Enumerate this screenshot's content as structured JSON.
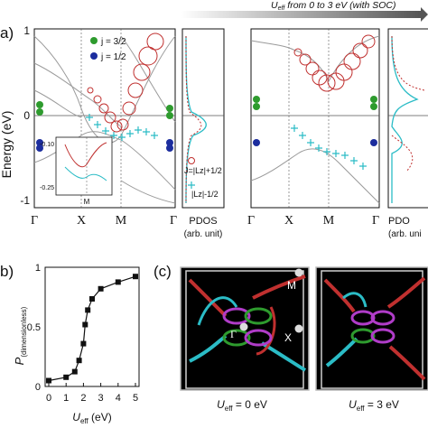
{
  "header": {
    "arrow_label": "U",
    "arrow_sub": "eff",
    "arrow_rest": " from 0 to 3 eV (with SOC)"
  },
  "panel_a": {
    "tag": "a)",
    "ylabel": "Energy (eV)",
    "yticks": [
      "1",
      "0",
      "-1"
    ],
    "kpath": [
      "Γ",
      "X",
      "M",
      "Γ"
    ],
    "legend": [
      {
        "label": "j = 3/2",
        "color": "#2e9b2e"
      },
      {
        "label": "j = 1/2",
        "color": "#1c2d9e"
      }
    ],
    "inset": {
      "yticks": [
        "-0.10",
        "-0.25"
      ],
      "xlabel": "M"
    },
    "orbital_legend": [
      {
        "label": "J=|Lz|+1/2",
        "color": "#c0302f"
      },
      {
        "label": "|Lz|-1/2",
        "color": "#2bbcc6"
      }
    ],
    "pdos_label": "PDOS",
    "pdos_unit": "(arb. unit)",
    "pdos_label_right": "PDO",
    "pdos_unit_right": "(arb. uni"
  },
  "panel_b": {
    "tag": "b)",
    "ylabel": "P",
    "ylabel_sub": "(dimensionless)",
    "xlabel": "U",
    "xlabel_sub": "eff",
    "xlabel_unit": " (eV)",
    "yticks": [
      "1",
      "0.5",
      "0"
    ],
    "xticks": [
      "0",
      "1",
      "2",
      "3",
      "4",
      "5"
    ],
    "chart_data": {
      "type": "line",
      "x": [
        0,
        1,
        1.5,
        1.75,
        2,
        2.1,
        2.25,
        2.5,
        3,
        4,
        5
      ],
      "y": [
        0.02,
        0.05,
        0.1,
        0.2,
        0.35,
        0.52,
        0.65,
        0.75,
        0.84,
        0.9,
        0.95
      ],
      "xlim": [
        0,
        5
      ],
      "ylim": [
        0,
        1
      ],
      "marker": "square"
    }
  },
  "panel_c": {
    "tag": "(c)",
    "labels_left": [
      "M",
      "Γ",
      "X"
    ],
    "caption_left": "U",
    "caption_left_sub": "eff",
    "caption_left_rest": " = 0 eV",
    "caption_right": "U",
    "caption_right_sub": "eff",
    "caption_right_rest": " = 3 eV"
  }
}
